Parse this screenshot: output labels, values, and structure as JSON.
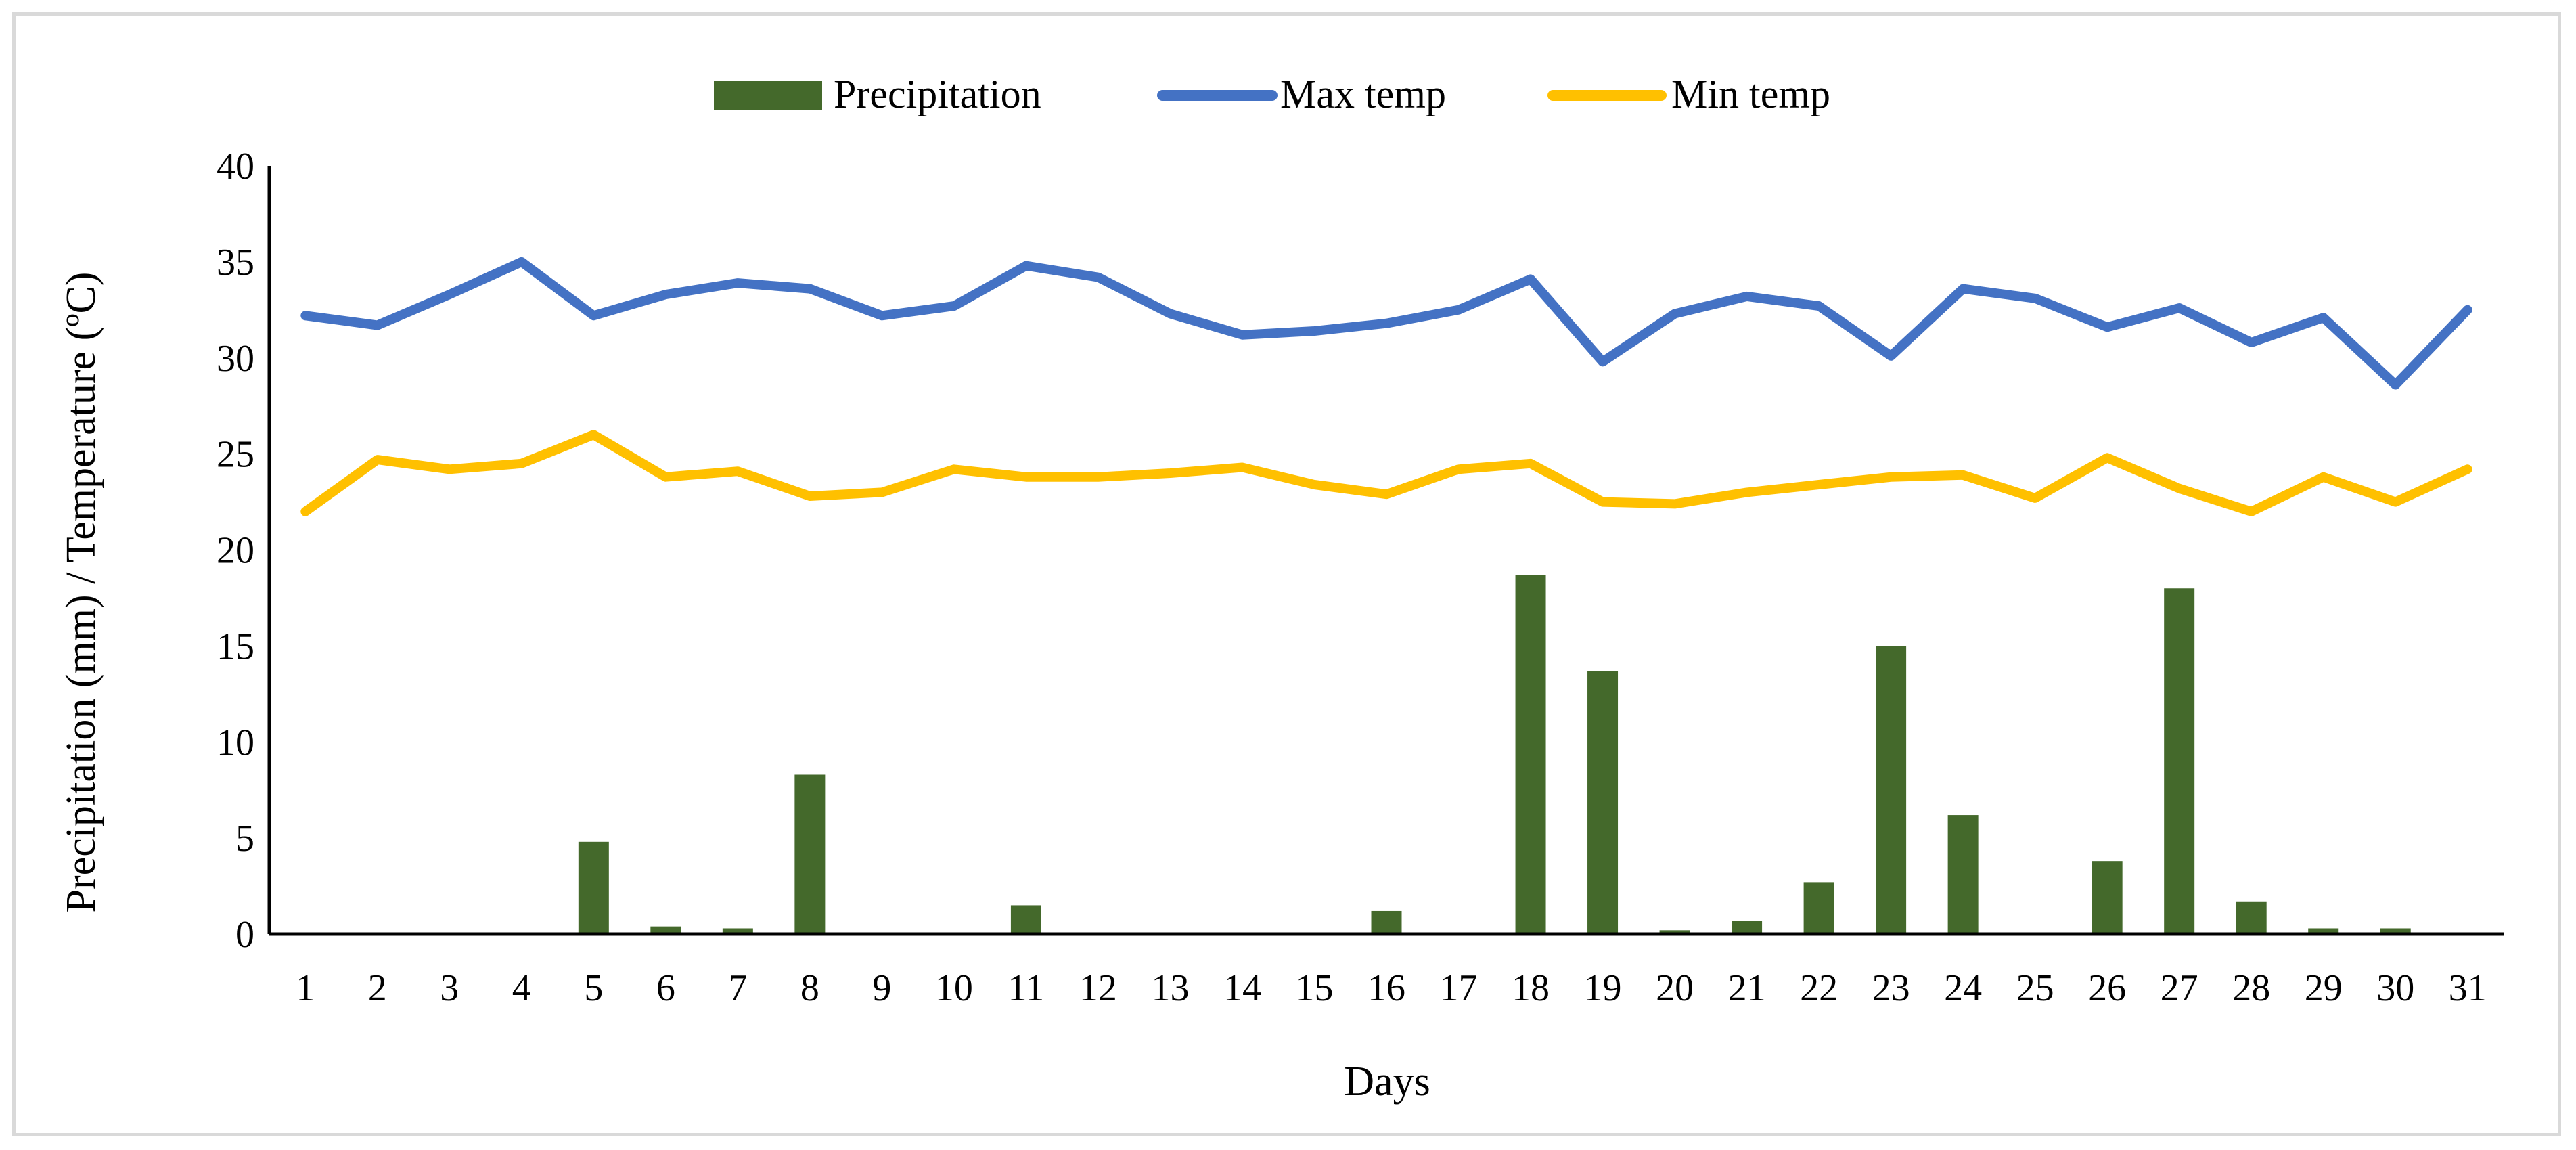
{
  "chart_data": {
    "type": "bar+line",
    "title": "",
    "xlabel": "Days",
    "ylabel": "Precipitation (mm) / Temperature (ºC)",
    "ylim": [
      0,
      40
    ],
    "yticks": [
      0,
      5,
      10,
      15,
      20,
      25,
      30,
      35,
      40
    ],
    "grid": false,
    "legend_position": "top-center",
    "categories": [
      "1",
      "2",
      "3",
      "4",
      "5",
      "6",
      "7",
      "8",
      "9",
      "10",
      "11",
      "12",
      "13",
      "14",
      "15",
      "16",
      "17",
      "18",
      "19",
      "20",
      "21",
      "22",
      "23",
      "24",
      "25",
      "26",
      "27",
      "28",
      "29",
      "30",
      "31"
    ],
    "series": [
      {
        "name": "Precipitation",
        "kind": "bar",
        "color": "#44692b",
        "values": [
          0,
          0,
          0,
          0,
          4.8,
          0.4,
          0.3,
          8.3,
          0,
          0,
          1.5,
          0,
          0,
          0,
          0,
          1.2,
          0,
          18.7,
          13.7,
          0.2,
          0.7,
          2.7,
          15.0,
          6.2,
          0,
          3.8,
          18.0,
          1.7,
          0.3,
          0.3,
          0
        ]
      },
      {
        "name": "Max temp",
        "kind": "line",
        "color": "#4472c4",
        "values": [
          32.2,
          31.7,
          33.3,
          35.0,
          32.2,
          33.3,
          33.9,
          33.6,
          32.2,
          32.7,
          34.8,
          34.2,
          32.3,
          31.2,
          31.4,
          31.8,
          32.5,
          34.1,
          29.8,
          32.3,
          33.2,
          32.7,
          30.1,
          33.6,
          33.1,
          31.6,
          32.6,
          30.8,
          32.1,
          28.6,
          32.5
        ]
      },
      {
        "name": "Min temp",
        "kind": "line",
        "color": "#ffc000",
        "values": [
          22.0,
          24.7,
          24.2,
          24.5,
          26.0,
          23.8,
          24.1,
          22.8,
          23.0,
          24.2,
          23.8,
          23.8,
          24.0,
          24.3,
          23.4,
          22.9,
          24.2,
          24.5,
          22.5,
          22.4,
          23.0,
          23.4,
          23.8,
          23.9,
          22.7,
          24.8,
          23.2,
          22.0,
          23.8,
          22.5,
          24.2
        ]
      }
    ]
  }
}
